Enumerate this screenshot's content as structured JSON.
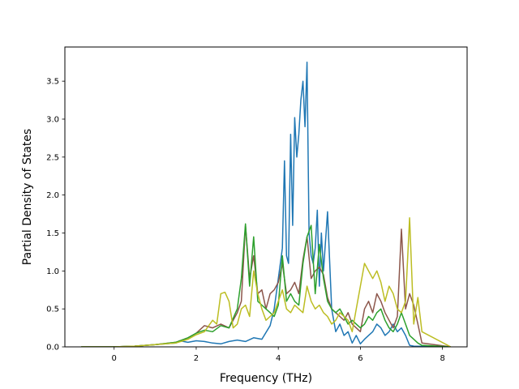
{
  "chart_data": {
    "type": "line",
    "xlabel": "Frequency (THz)",
    "ylabel": "Partial Density of States",
    "xlim": [
      -1.2,
      8.6
    ],
    "ylim": [
      0,
      3.95
    ],
    "xticks": [
      "0",
      "2",
      "4",
      "6",
      "8"
    ],
    "yticks": [
      "0.0",
      "0.5",
      "1.0",
      "1.5",
      "2.0",
      "2.5",
      "3.0",
      "3.5"
    ],
    "grid": false,
    "series": [
      {
        "color": "#1f77b4",
        "x": [
          -0.8,
          0,
          0.5,
          1,
          1.5,
          1.6,
          1.8,
          2,
          2.2,
          2.4,
          2.6,
          2.8,
          3,
          3.2,
          3.4,
          3.6,
          3.8,
          3.9,
          4,
          4.1,
          4.15,
          4.2,
          4.25,
          4.3,
          4.35,
          4.4,
          4.45,
          4.5,
          4.55,
          4.6,
          4.65,
          4.7,
          4.75,
          4.8,
          4.85,
          4.9,
          4.95,
          5,
          5.05,
          5.1,
          5.2,
          5.3,
          5.4,
          5.5,
          5.6,
          5.7,
          5.8,
          5.9,
          6,
          6.1,
          6.2,
          6.3,
          6.4,
          6.5,
          6.6,
          6.7,
          6.8,
          6.9,
          7,
          7.1,
          7.2,
          7.3,
          8.2
        ],
        "y": [
          0,
          0,
          0.01,
          0.03,
          0.05,
          0.08,
          0.06,
          0.08,
          0.07,
          0.05,
          0.04,
          0.07,
          0.09,
          0.07,
          0.12,
          0.1,
          0.28,
          0.5,
          0.9,
          1.3,
          2.45,
          1.2,
          1.1,
          2.8,
          1.6,
          3.02,
          2.5,
          2.8,
          3.25,
          3.5,
          2.9,
          3.75,
          1.5,
          1.2,
          1.1,
          1.3,
          1.8,
          0.8,
          1.5,
          1.0,
          1.78,
          0.5,
          0.2,
          0.3,
          0.15,
          0.2,
          0.05,
          0.15,
          0.04,
          0.1,
          0.15,
          0.2,
          0.3,
          0.25,
          0.15,
          0.2,
          0.3,
          0.2,
          0.25,
          0.15,
          0.02,
          0.01,
          0
        ]
      },
      {
        "color": "#8c564b",
        "x": [
          -0.8,
          0,
          0.5,
          1,
          1.5,
          1.8,
          2,
          2.2,
          2.4,
          2.6,
          2.8,
          3,
          3.1,
          3.2,
          3.3,
          3.4,
          3.5,
          3.6,
          3.7,
          3.8,
          3.9,
          4,
          4.1,
          4.2,
          4.3,
          4.4,
          4.5,
          4.6,
          4.7,
          4.8,
          4.9,
          5,
          5.1,
          5.2,
          5.3,
          5.4,
          5.5,
          5.6,
          5.7,
          5.8,
          5.9,
          6,
          6.1,
          6.2,
          6.3,
          6.4,
          6.5,
          6.6,
          6.7,
          6.8,
          6.9,
          7,
          7.1,
          7.2,
          7.3,
          7.4,
          7.5,
          8.2
        ],
        "y": [
          0,
          0,
          0.01,
          0.03,
          0.06,
          0.12,
          0.18,
          0.28,
          0.25,
          0.3,
          0.25,
          0.45,
          0.6,
          1.6,
          0.9,
          1.2,
          0.7,
          0.75,
          0.5,
          0.7,
          0.75,
          0.85,
          1.1,
          0.7,
          0.75,
          0.85,
          0.7,
          1.15,
          1.45,
          0.9,
          1.0,
          1.05,
          0.95,
          0.65,
          0.5,
          0.45,
          0.4,
          0.35,
          0.45,
          0.3,
          0.25,
          0.2,
          0.5,
          0.6,
          0.45,
          0.7,
          0.6,
          0.45,
          0.35,
          0.25,
          0.4,
          1.55,
          0.5,
          0.7,
          0.55,
          0.3,
          0.05,
          0
        ]
      },
      {
        "color": "#2ca02c",
        "x": [
          -0.8,
          0,
          0.5,
          1,
          1.5,
          1.8,
          2,
          2.2,
          2.4,
          2.6,
          2.8,
          3,
          3.1,
          3.2,
          3.3,
          3.4,
          3.5,
          3.6,
          3.7,
          3.8,
          3.9,
          4,
          4.1,
          4.2,
          4.3,
          4.4,
          4.5,
          4.6,
          4.7,
          4.8,
          4.9,
          5,
          5.1,
          5.2,
          5.3,
          5.4,
          5.5,
          5.6,
          5.7,
          5.8,
          5.9,
          6,
          6.1,
          6.2,
          6.3,
          6.4,
          6.5,
          6.6,
          6.7,
          6.8,
          6.9,
          7,
          7.1,
          7.2,
          7.3,
          7.4,
          7.5,
          8.2
        ],
        "y": [
          0,
          0,
          0.01,
          0.03,
          0.06,
          0.12,
          0.18,
          0.22,
          0.2,
          0.28,
          0.25,
          0.5,
          0.9,
          1.62,
          0.8,
          1.45,
          0.6,
          0.55,
          0.5,
          0.45,
          0.4,
          0.55,
          1.2,
          0.6,
          0.7,
          0.6,
          0.55,
          1.1,
          1.45,
          1.6,
          0.7,
          1.35,
          0.9,
          0.6,
          0.5,
          0.45,
          0.5,
          0.4,
          0.3,
          0.35,
          0.3,
          0.25,
          0.3,
          0.4,
          0.35,
          0.45,
          0.5,
          0.35,
          0.25,
          0.2,
          0.3,
          0.45,
          0.3,
          0.15,
          0.1,
          0.05,
          0.02,
          0
        ]
      },
      {
        "color": "#bcbd22",
        "x": [
          -0.8,
          0,
          0.5,
          1,
          1.5,
          1.8,
          2,
          2.2,
          2.4,
          2.5,
          2.6,
          2.7,
          2.8,
          2.9,
          3,
          3.1,
          3.2,
          3.3,
          3.4,
          3.5,
          3.6,
          3.7,
          3.8,
          3.9,
          4,
          4.1,
          4.2,
          4.3,
          4.4,
          4.5,
          4.6,
          4.7,
          4.8,
          4.9,
          5,
          5.1,
          5.2,
          5.3,
          5.4,
          5.5,
          5.6,
          5.7,
          5.8,
          5.9,
          6,
          6.1,
          6.2,
          6.3,
          6.4,
          6.5,
          6.6,
          6.7,
          6.8,
          6.9,
          7,
          7.1,
          7.2,
          7.3,
          7.4,
          7.5,
          8.2
        ],
        "y": [
          0,
          0,
          0.01,
          0.03,
          0.05,
          0.1,
          0.16,
          0.2,
          0.35,
          0.3,
          0.7,
          0.72,
          0.6,
          0.25,
          0.3,
          0.5,
          0.55,
          0.4,
          1.0,
          0.7,
          0.5,
          0.35,
          0.4,
          0.45,
          0.6,
          0.75,
          0.5,
          0.45,
          0.55,
          0.5,
          0.45,
          0.8,
          0.6,
          0.5,
          0.55,
          0.45,
          0.4,
          0.3,
          0.35,
          0.45,
          0.4,
          0.35,
          0.2,
          0.5,
          0.8,
          1.1,
          1.0,
          0.9,
          1.0,
          0.85,
          0.6,
          0.8,
          0.7,
          0.5,
          0.45,
          0.6,
          1.7,
          0.3,
          0.65,
          0.2,
          0
        ]
      }
    ]
  }
}
